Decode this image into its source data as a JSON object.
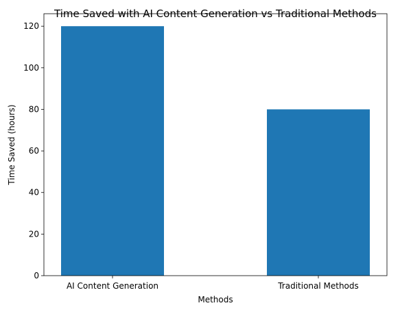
{
  "chart_data": {
    "type": "bar",
    "title": "Time Saved with AI Content Generation vs Traditional Methods",
    "xlabel": "Methods",
    "ylabel": "Time Saved (hours)",
    "categories": [
      "AI Content Generation",
      "Traditional Methods"
    ],
    "values": [
      120,
      80
    ],
    "ylim": [
      0,
      126
    ],
    "yticks": [
      0,
      20,
      40,
      60,
      80,
      100,
      120
    ],
    "grid": false,
    "legend": "none",
    "bar_color": "#1f77b4"
  }
}
